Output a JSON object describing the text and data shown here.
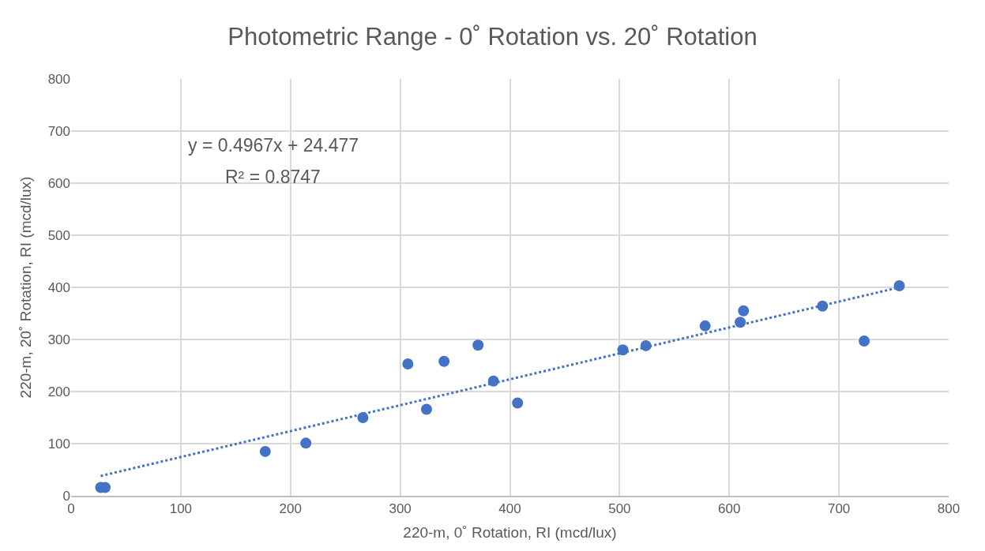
{
  "chart_data": {
    "type": "scatter",
    "title": "Photometric Range - 0˚ Rotation vs. 20˚ Rotation",
    "xlabel": "220-m, 0˚ Rotation, RI (mcd/lux)",
    "ylabel": "220-m, 20˚ Rotation, RI (mcd/lux)",
    "xlim": [
      0,
      800
    ],
    "ylim": [
      0,
      800
    ],
    "xticks": [
      0,
      100,
      200,
      300,
      400,
      500,
      600,
      700,
      800
    ],
    "yticks": [
      0,
      100,
      200,
      300,
      400,
      500,
      600,
      700,
      800
    ],
    "grid": true,
    "legend": false,
    "marker": "circle",
    "annotations": [
      "y = 0.4967x + 24.477",
      "R² = 0.8747"
    ],
    "series": [
      {
        "color": "#4472c4",
        "x": [
          27,
          31,
          177,
          214,
          266,
          307,
          324,
          340,
          371,
          385,
          407,
          503,
          524,
          578,
          610,
          613,
          685,
          723,
          755
        ],
        "values": [
          16,
          16,
          85,
          101,
          150,
          253,
          166,
          258,
          289,
          220,
          178,
          280,
          288,
          326,
          333,
          355,
          364,
          297,
          403
        ]
      },
      {
        "type": "line",
        "color": "#4472c4",
        "marker": "none",
        "line_style": "dotted",
        "x": [
          27,
          755
        ],
        "values": [
          38,
          400
        ]
      }
    ]
  }
}
